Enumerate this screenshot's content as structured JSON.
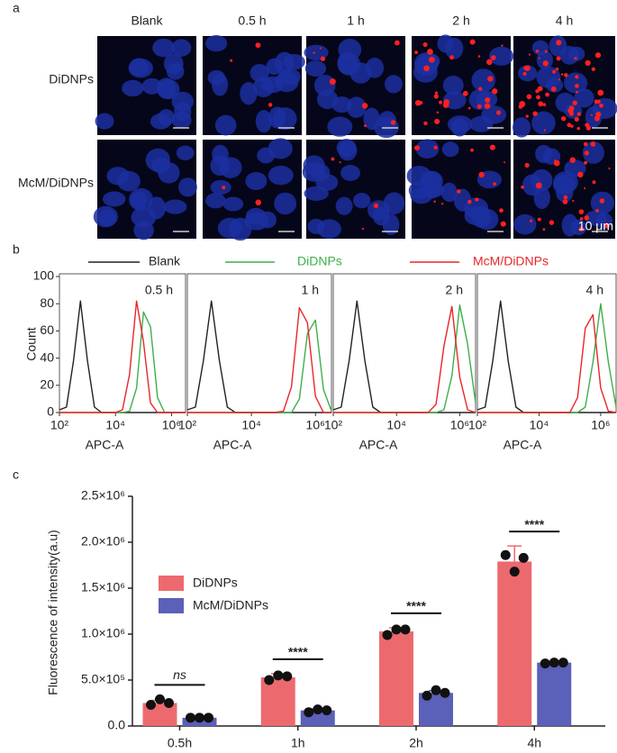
{
  "panel_labels": [
    "a",
    "b",
    "c"
  ],
  "images": {
    "columns": [
      "Blank",
      "0.5 h",
      "1 h",
      "2 h",
      "4 h"
    ],
    "rows": [
      "DiDNPs",
      "McM/DiDNPs"
    ],
    "scale_bar": "10 μm"
  },
  "chart_data": [
    {
      "type": "line",
      "panels": [
        "0.5 h",
        "1 h",
        "2 h",
        "4 h"
      ],
      "xlog": true,
      "x": [
        100,
        177.8,
        316.2,
        562.3,
        1000,
        1778,
        3162,
        5623,
        10000,
        17783,
        31623,
        56234,
        100000,
        177828,
        316228,
        562341,
        1000000,
        1778279,
        3162278
      ],
      "xlim": [
        100,
        3162278
      ],
      "xticks": [
        {
          "value": 100,
          "label": "10²"
        },
        {
          "value": 10000,
          "label": "10⁴"
        },
        {
          "value": 1000000,
          "label": "10⁶"
        }
      ],
      "ylim": [
        0,
        100
      ],
      "yticks": [
        0,
        20,
        40,
        60,
        80,
        100
      ],
      "xlabel": "APC-A",
      "ylabel": "Count",
      "series": [
        {
          "name": "Blank",
          "color": "#222222",
          "values": [
            [
              2,
              4,
              38,
              82,
              38,
              4,
              0,
              0,
              0,
              0,
              0,
              0,
              0,
              0,
              0,
              0,
              0,
              0,
              0
            ],
            [
              2,
              4,
              38,
              82,
              38,
              4,
              0,
              0,
              0,
              0,
              0,
              0,
              0,
              0,
              0,
              0,
              0,
              0,
              0
            ],
            [
              2,
              4,
              38,
              82,
              38,
              4,
              0,
              0,
              0,
              0,
              0,
              0,
              0,
              0,
              0,
              0,
              0,
              0,
              0
            ],
            [
              2,
              4,
              38,
              82,
              38,
              4,
              0,
              0,
              0,
              0,
              0,
              0,
              0,
              0,
              0,
              0,
              0,
              0,
              0
            ]
          ]
        },
        {
          "name": "DiDNPs",
          "color": "#3cb04a",
          "values": [
            [
              0,
              0,
              0,
              0,
              0,
              0,
              0,
              0,
              0,
              0,
              1,
              18,
              74,
              63,
              11,
              0,
              0,
              0,
              0
            ],
            [
              0,
              0,
              0,
              0,
              0,
              0,
              0,
              0,
              0,
              0,
              0,
              0,
              0,
              0,
              10,
              58,
              68,
              17,
              1
            ],
            [
              0,
              0,
              0,
              0,
              0,
              0,
              0,
              0,
              0,
              0,
              0,
              0,
              0,
              0,
              2,
              27,
              79,
              50,
              7
            ],
            [
              0,
              0,
              0,
              0,
              0,
              0,
              0,
              0,
              0,
              0,
              0,
              0,
              0,
              0,
              4,
              37,
              80,
              37,
              4
            ]
          ]
        },
        {
          "name": "McM/DiDNPs",
          "color": "#e8262a",
          "values": [
            [
              0,
              0,
              0,
              0,
              0,
              0,
              0,
              0,
              0,
              2,
              28,
              82,
              52,
              7,
              0,
              0,
              0,
              0,
              0
            ],
            [
              0,
              0,
              0,
              0,
              0,
              0,
              0,
              0,
              0,
              0,
              0,
              0,
              1,
              19,
              77,
              66,
              12,
              0,
              0
            ],
            [
              0,
              0,
              0,
              0,
              0,
              0,
              0,
              0,
              0,
              0,
              0,
              0,
              0,
              6,
              49,
              78,
              26,
              2,
              0
            ],
            [
              0,
              0,
              0,
              0,
              0,
              0,
              0,
              0,
              0,
              0,
              0,
              0,
              0,
              11,
              62,
              72,
              18,
              1,
              0
            ]
          ]
        }
      ]
    },
    {
      "type": "bar",
      "categories": [
        "0.5h",
        "1h",
        "2h",
        "4h"
      ],
      "ylabel": "Fluorescence of intensity(a.u)",
      "ylim": [
        0,
        2500000
      ],
      "yticks": [
        {
          "value": 0,
          "label": "0.0"
        },
        {
          "value": 500000,
          "label": "5.0×10⁵"
        },
        {
          "value": 1000000,
          "label": "1.0×10⁶"
        },
        {
          "value": 1500000,
          "label": "1.5×10⁶"
        },
        {
          "value": 2000000,
          "label": "2.0×10⁶"
        },
        {
          "value": 2500000,
          "label": "2.5×10⁶"
        }
      ],
      "significance": [
        "ns",
        "****",
        "****",
        "****"
      ],
      "legend": "upper left",
      "series": [
        {
          "name": "DiDNPs",
          "color": "#ec6a6e",
          "values": [
            250000,
            530000,
            1030000,
            1790000
          ],
          "errors": [
            30000,
            40000,
            40000,
            170000
          ],
          "points": [
            [
              230000,
              290000,
              250000
            ],
            [
              500000,
              550000,
              540000
            ],
            [
              990000,
              1050000,
              1050000
            ],
            [
              1860000,
              1680000,
              1830000
            ]
          ]
        },
        {
          "name": "McM/DiDNPs",
          "color": "#5b60b8",
          "values": [
            90000,
            170000,
            360000,
            690000
          ],
          "errors": [
            5000,
            15000,
            25000,
            5000
          ],
          "points": [
            [
              90000,
              90000,
              90000
            ],
            [
              150000,
              180000,
              170000
            ],
            [
              330000,
              390000,
              360000
            ],
            [
              680000,
              690000,
              690000
            ]
          ]
        }
      ]
    }
  ]
}
